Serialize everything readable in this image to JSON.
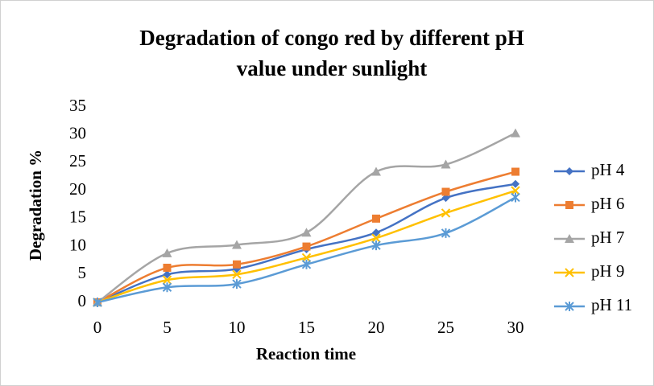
{
  "chart_data": {
    "type": "line",
    "title": [
      "Degradation of congo red by different pH",
      "value under sunlight"
    ],
    "x_label": "Reaction time",
    "y_label": "Degradation %",
    "x": [
      0,
      5,
      10,
      15,
      20,
      25,
      30
    ],
    "xlim": [
      0,
      30
    ],
    "xticks": [
      0,
      5,
      10,
      15,
      20,
      25,
      30
    ],
    "ylim": [
      0,
      35
    ],
    "yticks": [
      0,
      5,
      10,
      15,
      20,
      25,
      30,
      35
    ],
    "grid": false,
    "legend": "right",
    "smooth": true,
    "series": [
      {
        "name": "pH 4",
        "color": "#4472c4",
        "marker": "diamond",
        "values": [
          0,
          5,
          6,
          9.5,
          12.5,
          18.7,
          21.2
        ]
      },
      {
        "name": "pH 6",
        "color": "#ed7d31",
        "marker": "square",
        "values": [
          0,
          6.2,
          6.8,
          10,
          15,
          19.8,
          23.4
        ]
      },
      {
        "name": "pH 7",
        "color": "#a5a5a5",
        "marker": "triangle",
        "values": [
          0,
          8.8,
          10.3,
          12.5,
          23.4,
          24.7,
          30.3
        ]
      },
      {
        "name": "pH 9",
        "color": "#ffc000",
        "marker": "x",
        "values": [
          0,
          4,
          5,
          8,
          11.5,
          16,
          20
        ]
      },
      {
        "name": "pH 11",
        "color": "#5b9bd5",
        "marker": "star",
        "values": [
          0,
          2.7,
          3.3,
          6.8,
          10.2,
          12.4,
          18.8
        ]
      }
    ]
  }
}
